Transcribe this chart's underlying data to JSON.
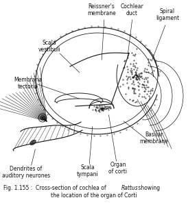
{
  "background_color": "#ffffff",
  "line_color": "#111111",
  "labels": {
    "reissners_membrane": "Reissner's\nmembrane",
    "cochlear_duct": "Cochlear\nduct",
    "spiral_ligament": "Spiral\nligament",
    "scala_vestibuli": "Scala\nvestibuli",
    "membrana_tectoria": "Membrana\ntectoria",
    "basilar_membrane": "Basilar\nmembrane",
    "scala_tympani": "Scala\ntympani",
    "organ_of_corti": "Organ\nof corti",
    "dendrites": "Dendrites of\nauditory neurones"
  },
  "fig_width": 2.74,
  "fig_height": 3.08,
  "dpi": 100,
  "label_fs": 5.5,
  "caption_fs": 5.5
}
